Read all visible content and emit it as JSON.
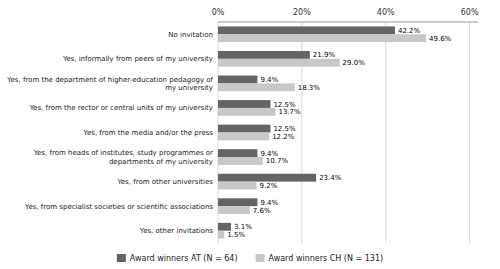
{
  "chart_data": {
    "type": "bar",
    "orientation": "horizontal",
    "categories": [
      "No invitation",
      "Yes, informally from peers of my university",
      "Yes, from the department of higher-education pedagogy of\nmy university",
      "Yes, from the rector or central units of my university",
      "Yes, from the media and/or the press",
      "Yes, from heads of institutes, study programmes or\ndepartments of my university",
      "Yes, from other universities",
      "Yes, from specialist societies or scientific associations",
      "Yes, other invitations"
    ],
    "series": [
      {
        "name": "Award winners AT (N = 64)",
        "color": "#646464",
        "values": [
          42.2,
          21.9,
          9.4,
          12.5,
          12.5,
          9.4,
          23.4,
          9.4,
          3.1
        ],
        "value_labels": [
          "42.2%",
          "21.9%",
          "9.4%",
          "12.5%",
          "12.5%",
          "9.4%",
          "23.4%",
          "9.4%",
          "3.1%"
        ]
      },
      {
        "name": "Award winners CH (N = 131)",
        "color": "#c8c8c8",
        "values": [
          49.6,
          29.0,
          18.3,
          13.7,
          12.2,
          10.7,
          9.2,
          7.6,
          1.5
        ],
        "value_labels": [
          "49.6%",
          "29.0%",
          "18.3%",
          "13.7%",
          "12.2%",
          "10.7%",
          "9.2%",
          "7.6%",
          "1.5%"
        ]
      }
    ],
    "xlim": [
      0,
      62
    ],
    "xticks": [
      {
        "value": 0,
        "label": "0%"
      },
      {
        "value": 20,
        "label": "20%"
      },
      {
        "value": 40,
        "label": "40%"
      },
      {
        "value": 60,
        "label": "60%"
      }
    ],
    "grid": true,
    "legend": "bottom",
    "data_labels": true
  }
}
